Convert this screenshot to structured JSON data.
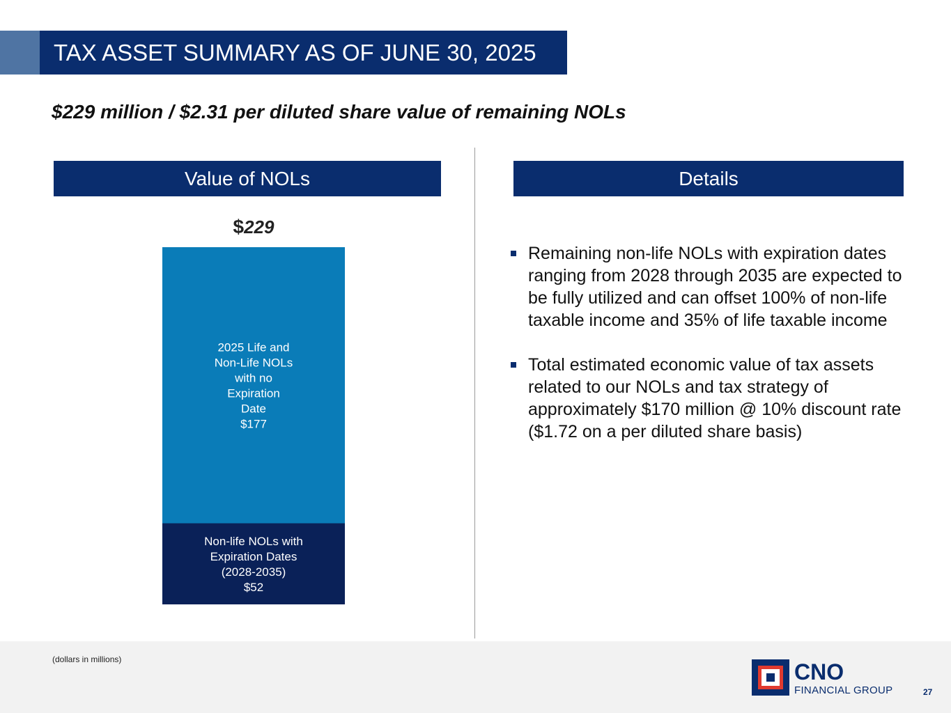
{
  "header": {
    "title": "TAX ASSET SUMMARY AS OF JUNE 30, 2025"
  },
  "subtitle": "$229 million / $2.31 per diluted share value of remaining NOLs",
  "left_panel": {
    "heading": "Value of NOLs"
  },
  "right_panel": {
    "heading": "Details",
    "bullets": [
      "Remaining non-life NOLs with expiration dates ranging from 2028 through 2035 are expected to be fully utilized and can offset 100% of non-life taxable income and 35% of life taxable income",
      "Total estimated economic value of tax assets related to our NOLs and tax strategy of approximately $170 million @ 10% discount rate ($1.72 on a per diluted share basis)"
    ]
  },
  "chart_data": {
    "type": "bar",
    "stacked": true,
    "categories": [
      ""
    ],
    "total_label": {
      "currency": "$",
      "value": "229"
    },
    "series": [
      {
        "name": "Non-life NOLs with Expiration Dates (2028-2035)",
        "label_lines": [
          "Non-life NOLs with",
          "Expiration Dates",
          "(2028-2035)",
          "$52"
        ],
        "values": [
          52
        ],
        "color": "#0a2158"
      },
      {
        "name": "2025 Life and Non-Life NOLs with no Expiration Date",
        "label_lines": [
          "2025 Life and",
          "Non-Life NOLs",
          "with no",
          "Expiration",
          "Date",
          "$177"
        ],
        "values": [
          177
        ],
        "color": "#0a7cb8"
      }
    ],
    "ylim": [
      0,
      229
    ]
  },
  "footer": {
    "note": "(dollars in millions)",
    "logo_word": "CNO",
    "logo_sub": "FINANCIAL GROUP",
    "page_number": "27"
  }
}
